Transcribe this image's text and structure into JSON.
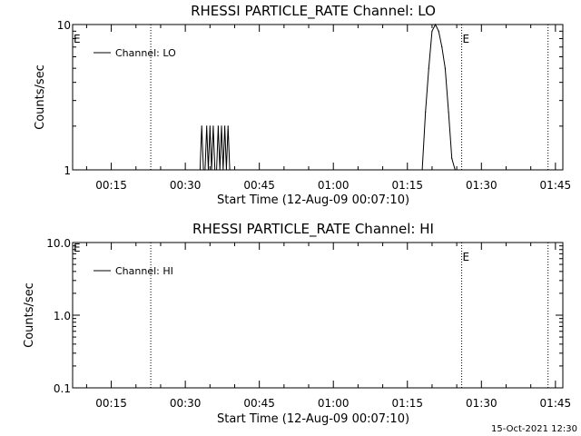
{
  "footer_timestamp": "15-Oct-2021 12:30",
  "chart_data": [
    {
      "type": "line",
      "title": "RHESSI PARTICLE_RATE Channel: LO",
      "xlabel": "Start Time (12-Aug-09 00:07:10)",
      "ylabel": "Counts/sec",
      "x_tick_labels": [
        "00:15",
        "00:30",
        "00:45",
        "01:00",
        "01:15",
        "01:30",
        "01:45"
      ],
      "y_scale": "log",
      "ylim": [
        1,
        10
      ],
      "y_tick_labels": [
        "1",
        "10"
      ],
      "y_ticks": [
        1,
        10
      ],
      "legend": "top-left",
      "series": [
        {
          "name": "Channel: LO",
          "x": [
            "00:33:00",
            "00:33:20",
            "00:33:40",
            "00:34:00",
            "00:34:20",
            "00:34:40",
            "00:35:00",
            "00:35:20",
            "00:35:40",
            "00:36:00",
            "00:36:20",
            "00:36:40",
            "00:37:00",
            "00:37:20",
            "00:37:40",
            "00:38:00",
            "00:38:20",
            "00:38:40",
            "00:39:00",
            "01:18:00",
            "01:18:40",
            "01:19:20",
            "01:20:00",
            "01:20:40",
            "01:21:20",
            "01:22:00",
            "01:22:40",
            "01:23:20",
            "01:24:00",
            "01:24:40",
            "01:25:20"
          ],
          "values": [
            1,
            2,
            1,
            1,
            2,
            1,
            2,
            1,
            2,
            1,
            1,
            2,
            1,
            2,
            1,
            2,
            1,
            2,
            1,
            1,
            2.5,
            5,
            9,
            10,
            9,
            7,
            5,
            2.5,
            1.2,
            1,
            1
          ]
        }
      ],
      "markers": [
        {
          "label": "",
          "time": "00:23:00"
        },
        {
          "label": "E",
          "time": "01:26:00"
        },
        {
          "label": "",
          "time": "01:43:30"
        }
      ],
      "left_marker_label": "E"
    },
    {
      "type": "line",
      "title": "RHESSI PARTICLE_RATE Channel: HI",
      "xlabel": "Start Time (12-Aug-09 00:07:10)",
      "ylabel": "Counts/sec",
      "x_tick_labels": [
        "00:15",
        "00:30",
        "00:45",
        "01:00",
        "01:15",
        "01:30",
        "01:45"
      ],
      "y_scale": "log",
      "ylim": [
        0.1,
        10
      ],
      "y_tick_labels": [
        "0.1",
        "1.0",
        "10.0"
      ],
      "y_ticks": [
        0.1,
        1,
        10
      ],
      "legend": "top-left",
      "series": [
        {
          "name": "Channel: HI",
          "x": [],
          "values": []
        }
      ],
      "markers": [
        {
          "label": "",
          "time": "00:23:00"
        },
        {
          "label": "E",
          "time": "01:26:00"
        },
        {
          "label": "",
          "time": "01:43:30"
        }
      ],
      "left_marker_label": "E"
    }
  ]
}
